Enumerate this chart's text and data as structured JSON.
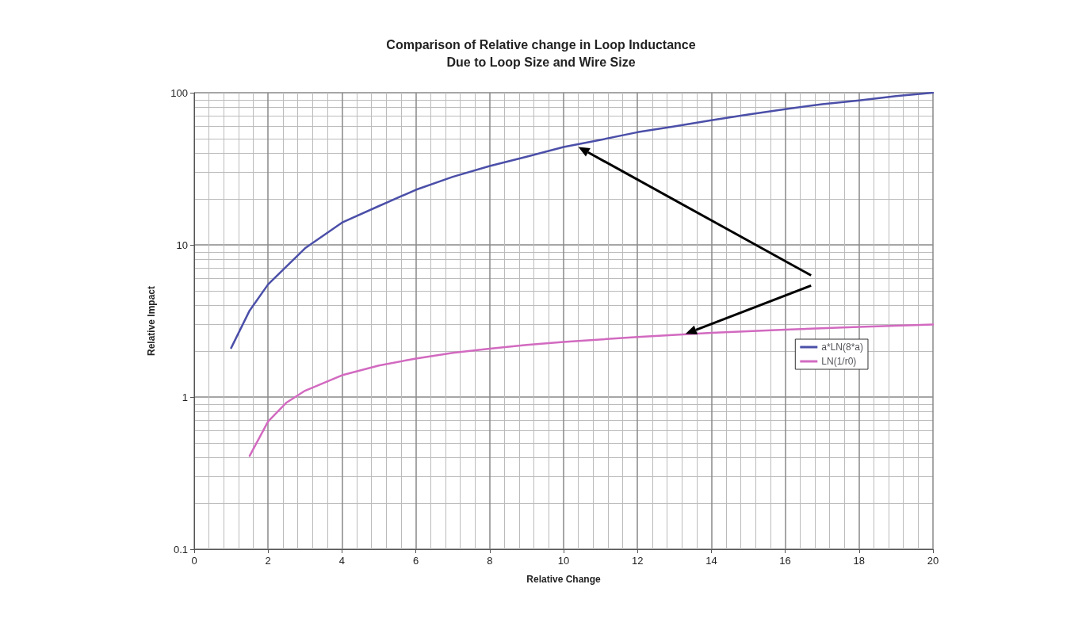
{
  "chart_data": {
    "type": "line",
    "title": "Comparison of Relative change in Loop Inductance\nDue to Loop Size and Wire Size",
    "xlabel": "Relative Change",
    "ylabel": "Relative Impact",
    "log": "y",
    "grid": true,
    "legend": "right",
    "marker": "none",
    "xlim": [
      0,
      20
    ],
    "xticks": [
      0,
      2,
      4,
      6,
      8,
      10,
      12,
      14,
      16,
      18,
      20
    ],
    "ylim": [
      0.1,
      100
    ],
    "yticks": [
      0.1,
      1,
      10,
      100
    ],
    "series": [
      {
        "name": "a*LN(8*a)",
        "color": "#4b4fa8",
        "x": [
          1,
          1.5,
          2,
          3,
          4,
          5,
          6,
          7,
          8,
          9,
          10,
          11,
          12,
          13,
          14,
          15,
          16,
          17,
          18,
          19,
          20
        ],
        "values": [
          2.1,
          3.7,
          5.5,
          9.5,
          14,
          18,
          23,
          28,
          33,
          38,
          44,
          49,
          55,
          60,
          66,
          72,
          78,
          84,
          89,
          95,
          100
        ]
      },
      {
        "name": "LN(1/r0)",
        "color": "#d26ac0",
        "x": [
          1.5,
          2,
          2.5,
          3,
          4,
          5,
          6,
          7,
          8,
          9,
          10,
          12,
          14,
          16,
          18,
          20
        ],
        "values": [
          0.41,
          0.69,
          0.92,
          1.1,
          1.39,
          1.61,
          1.79,
          1.95,
          2.08,
          2.2,
          2.3,
          2.48,
          2.64,
          2.77,
          2.89,
          3.0
        ]
      }
    ]
  }
}
